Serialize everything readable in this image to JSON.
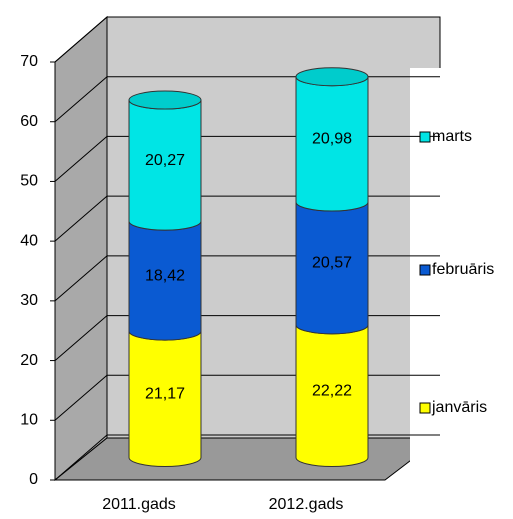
{
  "chart_data": {
    "type": "bar",
    "stacked": true,
    "categories": [
      "2011.gads",
      "2012.gads"
    ],
    "series": [
      {
        "name": "janvāris",
        "color": "#ffff00",
        "values": [
          21.17,
          22.22
        ],
        "value_labels": [
          "21,17",
          "22,22"
        ]
      },
      {
        "name": "februāris",
        "color": "#0a5ad2",
        "values": [
          18.42,
          20.57
        ],
        "value_labels": [
          "18,42",
          "20,57"
        ]
      },
      {
        "name": "marts",
        "color": "#00e5e5",
        "values": [
          20.27,
          20.98
        ],
        "value_labels": [
          "20,27",
          "20,98"
        ]
      }
    ],
    "ylim": [
      0,
      70
    ],
    "yticks": [
      0,
      10,
      20,
      30,
      40,
      50,
      60,
      70
    ],
    "grid": true,
    "legend": "right"
  }
}
